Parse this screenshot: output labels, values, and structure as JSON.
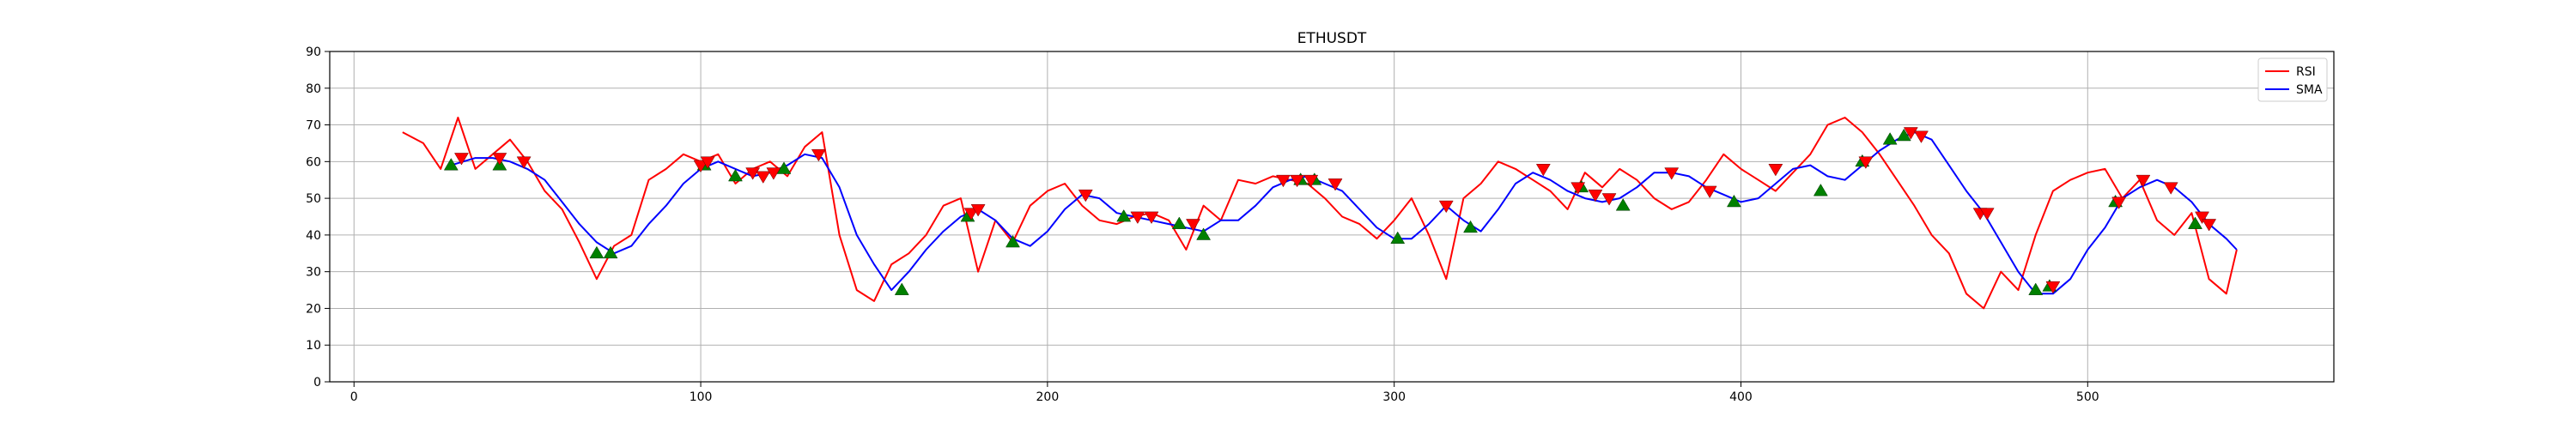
{
  "chart_data": {
    "type": "line",
    "title": "ETHUSDT",
    "xlabel": "",
    "ylabel": "",
    "xlim": [
      -7,
      571
    ],
    "ylim": [
      0,
      90
    ],
    "x_ticks": [
      0,
      100,
      200,
      300,
      400,
      500
    ],
    "y_ticks": [
      0,
      10,
      20,
      30,
      40,
      50,
      60,
      70,
      80,
      90
    ],
    "grid": true,
    "legend_position": "top-right",
    "colors": {
      "rsi": "#ff0000",
      "sma": "#0000ff",
      "buy_marker": "#008000",
      "sell_marker": "#ff0000"
    },
    "series": [
      {
        "name": "RSI",
        "x": [
          14,
          20,
          25,
          30,
          35,
          40,
          45,
          50,
          55,
          60,
          65,
          70,
          75,
          80,
          85,
          90,
          95,
          100,
          105,
          110,
          115,
          120,
          125,
          130,
          135,
          140,
          145,
          150,
          155,
          160,
          165,
          170,
          175,
          180,
          185,
          190,
          195,
          200,
          205,
          210,
          215,
          220,
          225,
          230,
          235,
          240,
          245,
          250,
          255,
          260,
          265,
          270,
          275,
          280,
          285,
          290,
          295,
          300,
          305,
          310,
          315,
          320,
          325,
          330,
          335,
          340,
          345,
          350,
          355,
          360,
          365,
          370,
          375,
          380,
          385,
          390,
          395,
          400,
          405,
          410,
          415,
          420,
          425,
          430,
          435,
          440,
          445,
          450,
          455,
          460,
          465,
          470,
          475,
          480,
          485,
          490,
          495,
          500,
          505,
          510,
          515,
          520,
          525,
          530,
          535,
          540,
          543
        ],
        "values": [
          68,
          65,
          58,
          72,
          58,
          62,
          66,
          60,
          52,
          47,
          38,
          28,
          37,
          40,
          55,
          58,
          62,
          60,
          62,
          54,
          58,
          60,
          56,
          64,
          68,
          40,
          25,
          22,
          32,
          35,
          40,
          48,
          50,
          30,
          44,
          38,
          48,
          52,
          54,
          48,
          44,
          43,
          45,
          46,
          44,
          36,
          48,
          44,
          55,
          54,
          56,
          55,
          54,
          50,
          45,
          43,
          39,
          44,
          50,
          40,
          28,
          50,
          54,
          60,
          58,
          55,
          52,
          47,
          57,
          53,
          58,
          55,
          50,
          47,
          49,
          55,
          62,
          58,
          55,
          52,
          57,
          62,
          70,
          72,
          68,
          62,
          55,
          48,
          40,
          35,
          24,
          20,
          30,
          25,
          40,
          52,
          55,
          57,
          58,
          50,
          55,
          44,
          40,
          46,
          28,
          24,
          36
        ]
      },
      {
        "name": "SMA",
        "x": [
          28,
          35,
          40,
          45,
          50,
          55,
          60,
          65,
          70,
          75,
          80,
          85,
          90,
          95,
          100,
          105,
          110,
          115,
          120,
          125,
          130,
          135,
          140,
          145,
          150,
          155,
          160,
          165,
          170,
          175,
          180,
          185,
          190,
          195,
          200,
          205,
          210,
          215,
          220,
          225,
          230,
          235,
          240,
          245,
          250,
          255,
          260,
          265,
          270,
          275,
          280,
          285,
          290,
          295,
          300,
          305,
          310,
          315,
          320,
          325,
          330,
          335,
          340,
          345,
          350,
          355,
          360,
          365,
          370,
          375,
          380,
          385,
          390,
          395,
          400,
          405,
          410,
          415,
          420,
          425,
          430,
          435,
          440,
          445,
          450,
          455,
          460,
          465,
          470,
          475,
          480,
          485,
          490,
          495,
          500,
          505,
          510,
          515,
          520,
          525,
          530,
          535,
          540,
          543
        ],
        "values": [
          59,
          61,
          61,
          60,
          58,
          55,
          49,
          43,
          38,
          35,
          37,
          43,
          48,
          54,
          58,
          60,
          58,
          56,
          57,
          59,
          62,
          61,
          53,
          40,
          32,
          25,
          30,
          36,
          41,
          45,
          47,
          44,
          39,
          37,
          41,
          47,
          51,
          50,
          46,
          45,
          44,
          43,
          42,
          41,
          44,
          44,
          48,
          53,
          55,
          56,
          54,
          52,
          47,
          42,
          39,
          39,
          43,
          48,
          44,
          41,
          47,
          54,
          57,
          55,
          52,
          50,
          49,
          50,
          53,
          57,
          57,
          56,
          53,
          51,
          49,
          50,
          54,
          58,
          59,
          56,
          55,
          59,
          63,
          66,
          68,
          66,
          59,
          52,
          46,
          38,
          30,
          24,
          24,
          28,
          36,
          42,
          50,
          53,
          55,
          53,
          49,
          43,
          39,
          36
        ]
      }
    ],
    "sell_markers": [
      {
        "x": 31,
        "y": 61
      },
      {
        "x": 42,
        "y": 61
      },
      {
        "x": 49,
        "y": 60
      },
      {
        "x": 100,
        "y": 59
      },
      {
        "x": 102,
        "y": 60
      },
      {
        "x": 115,
        "y": 57
      },
      {
        "x": 118,
        "y": 56
      },
      {
        "x": 121,
        "y": 57
      },
      {
        "x": 134,
        "y": 62
      },
      {
        "x": 178,
        "y": 46
      },
      {
        "x": 180,
        "y": 47
      },
      {
        "x": 211,
        "y": 51
      },
      {
        "x": 226,
        "y": 45
      },
      {
        "x": 230,
        "y": 45
      },
      {
        "x": 242,
        "y": 43
      },
      {
        "x": 268,
        "y": 55
      },
      {
        "x": 272,
        "y": 55
      },
      {
        "x": 276,
        "y": 55
      },
      {
        "x": 283,
        "y": 54
      },
      {
        "x": 315,
        "y": 48
      },
      {
        "x": 343,
        "y": 58
      },
      {
        "x": 353,
        "y": 53
      },
      {
        "x": 358,
        "y": 51
      },
      {
        "x": 362,
        "y": 50
      },
      {
        "x": 380,
        "y": 57
      },
      {
        "x": 391,
        "y": 52
      },
      {
        "x": 410,
        "y": 58
      },
      {
        "x": 436,
        "y": 60
      },
      {
        "x": 449,
        "y": 68
      },
      {
        "x": 452,
        "y": 67
      },
      {
        "x": 469,
        "y": 46
      },
      {
        "x": 471,
        "y": 46
      },
      {
        "x": 490,
        "y": 26
      },
      {
        "x": 509,
        "y": 49
      },
      {
        "x": 516,
        "y": 55
      },
      {
        "x": 524,
        "y": 53
      },
      {
        "x": 533,
        "y": 45
      },
      {
        "x": 535,
        "y": 43
      }
    ],
    "buy_markers": [
      {
        "x": 28,
        "y": 59
      },
      {
        "x": 42,
        "y": 59
      },
      {
        "x": 70,
        "y": 35
      },
      {
        "x": 74,
        "y": 35
      },
      {
        "x": 101,
        "y": 59
      },
      {
        "x": 110,
        "y": 56
      },
      {
        "x": 124,
        "y": 58
      },
      {
        "x": 158,
        "y": 25
      },
      {
        "x": 177,
        "y": 45
      },
      {
        "x": 190,
        "y": 38
      },
      {
        "x": 222,
        "y": 45
      },
      {
        "x": 238,
        "y": 43
      },
      {
        "x": 245,
        "y": 40
      },
      {
        "x": 273,
        "y": 55
      },
      {
        "x": 277,
        "y": 55
      },
      {
        "x": 301,
        "y": 39
      },
      {
        "x": 322,
        "y": 42
      },
      {
        "x": 354,
        "y": 53
      },
      {
        "x": 366,
        "y": 48
      },
      {
        "x": 398,
        "y": 49
      },
      {
        "x": 423,
        "y": 52
      },
      {
        "x": 435,
        "y": 60
      },
      {
        "x": 443,
        "y": 66
      },
      {
        "x": 447,
        "y": 67
      },
      {
        "x": 485,
        "y": 25
      },
      {
        "x": 489,
        "y": 26
      },
      {
        "x": 508,
        "y": 49
      },
      {
        "x": 531,
        "y": 43
      }
    ]
  }
}
